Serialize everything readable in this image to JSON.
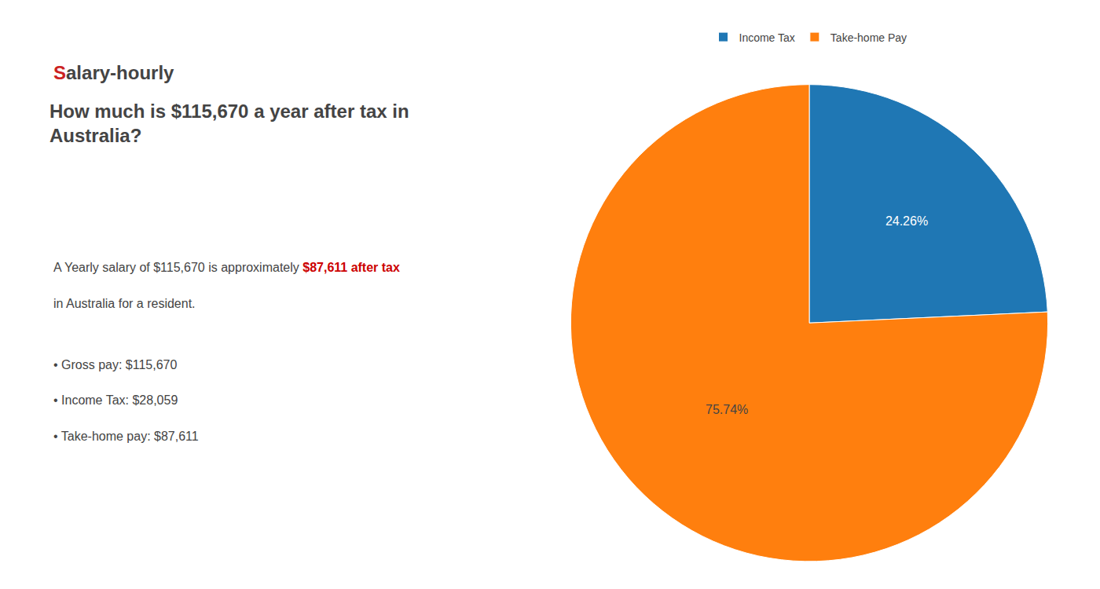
{
  "chart_data": {
    "type": "pie",
    "title": "How much is $115,670 a year after tax in\nAustralia?",
    "categories": [
      "Income Tax",
      "Take-home Pay"
    ],
    "values": [
      24.26,
      75.74
    ],
    "value_labels": [
      "24.26%",
      "75.74%"
    ],
    "data_labels": true,
    "legend": "top",
    "annotations": [
      [
        {
          "text": "S",
          "color": "#cc2222"
        },
        {
          "text": "alary-hourly"
        }
      ],
      [
        {
          "text": "A Yearly salary of $115,670 is approximately "
        },
        {
          "text": "$87,611 after tax",
          "color": "#cc0000"
        }
      ],
      [
        {
          "text": "in Australia for a resident."
        }
      ],
      [
        {
          "text": "• Gross pay: $115,670"
        }
      ],
      [
        {
          "text": "• Income Tax: $28,059"
        }
      ],
      [
        {
          "text": "• Take-home pay: $87,611"
        }
      ]
    ]
  }
}
